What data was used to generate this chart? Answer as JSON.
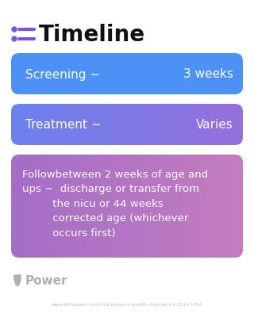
{
  "title": "Timeline",
  "title_fontsize": 20,
  "title_color": "#111111",
  "icon_color": "#7B52E8",
  "background_color": "#ffffff",
  "cards": [
    {
      "label_left": "Screening ~",
      "label_right": "3 weeks",
      "color": "#4C91F5",
      "gradient": false,
      "color_right": "#4C91F5",
      "text_color": "#ffffff",
      "fontsize": 11
    },
    {
      "label_left": "Treatment ~",
      "label_right": "Varies",
      "color": "#6B82EE",
      "color_right": "#9670DD",
      "gradient": true,
      "text_color": "#ffffff",
      "fontsize": 11
    },
    {
      "label_left": "Followbetween 2 weeks of age and\nups ~  discharge or transfer from\n         the nicu or 44 weeks\n         corrected age (whichever\n         occurs first)",
      "color": "#A56DC8",
      "color_right": "#C47DBF",
      "gradient": true,
      "text_color": "#ffffff",
      "fontsize": 9.5
    }
  ],
  "power_text": "Power",
  "url_text": "www.withpower.com/trial/phase-4-growth-disorders-6-2019-f2fef",
  "footer_color": "#b0b0b0"
}
